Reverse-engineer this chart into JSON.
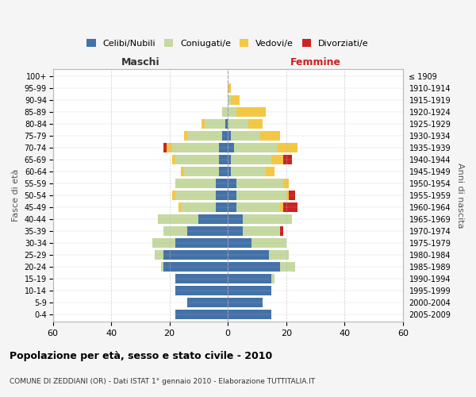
{
  "age_groups_bottom_to_top": [
    "0-4",
    "5-9",
    "10-14",
    "15-19",
    "20-24",
    "25-29",
    "30-34",
    "35-39",
    "40-44",
    "45-49",
    "50-54",
    "55-59",
    "60-64",
    "65-69",
    "70-74",
    "75-79",
    "80-84",
    "85-89",
    "90-94",
    "95-99",
    "100+"
  ],
  "birth_years_bottom_to_top": [
    "2005-2009",
    "2000-2004",
    "1995-1999",
    "1990-1994",
    "1985-1989",
    "1980-1984",
    "1975-1979",
    "1970-1974",
    "1965-1969",
    "1960-1964",
    "1955-1959",
    "1950-1954",
    "1945-1949",
    "1940-1944",
    "1935-1939",
    "1930-1934",
    "1925-1929",
    "1920-1924",
    "1915-1919",
    "1910-1914",
    "≤ 1909"
  ],
  "male": {
    "celibi": [
      18,
      14,
      18,
      18,
      22,
      22,
      18,
      14,
      10,
      4,
      4,
      4,
      3,
      3,
      3,
      2,
      1,
      0,
      0,
      0,
      0
    ],
    "coniugati": [
      0,
      0,
      0,
      0,
      1,
      3,
      8,
      8,
      14,
      12,
      14,
      14,
      12,
      15,
      16,
      12,
      7,
      2,
      0,
      0,
      0
    ],
    "vedovi": [
      0,
      0,
      0,
      0,
      0,
      0,
      0,
      0,
      0,
      1,
      1,
      0,
      1,
      1,
      2,
      1,
      1,
      0,
      0,
      0,
      0
    ],
    "divorziati": [
      0,
      0,
      0,
      0,
      0,
      0,
      0,
      0,
      0,
      0,
      0,
      0,
      0,
      0,
      1,
      0,
      0,
      0,
      0,
      0,
      0
    ]
  },
  "female": {
    "nubili": [
      15,
      12,
      15,
      15,
      18,
      14,
      8,
      5,
      5,
      3,
      3,
      3,
      1,
      1,
      2,
      1,
      0,
      0,
      0,
      0,
      0
    ],
    "coniugate": [
      0,
      0,
      0,
      1,
      5,
      7,
      12,
      13,
      17,
      15,
      17,
      16,
      12,
      14,
      15,
      10,
      7,
      3,
      1,
      0,
      0
    ],
    "vedove": [
      0,
      0,
      0,
      0,
      0,
      0,
      0,
      0,
      0,
      1,
      1,
      2,
      3,
      4,
      7,
      7,
      5,
      10,
      3,
      1,
      0
    ],
    "divorziate": [
      0,
      0,
      0,
      0,
      0,
      0,
      0,
      1,
      0,
      5,
      2,
      0,
      0,
      3,
      0,
      0,
      0,
      0,
      0,
      0,
      0
    ]
  },
  "color_celibi": "#4472a8",
  "color_coniugati": "#c5d9a0",
  "color_vedovi": "#f5c842",
  "color_divorziati": "#cc2222",
  "title": "Popolazione per età, sesso e stato civile - 2010",
  "subtitle": "COMUNE DI ZEDDIANI (OR) - Dati ISTAT 1° gennaio 2010 - Elaborazione TUTTITALIA.IT",
  "xlabel_left": "Maschi",
  "xlabel_right": "Femmine",
  "xlim": 60,
  "legend_labels": [
    "Celibi/Nubili",
    "Coniugati/e",
    "Vedovi/e",
    "Divorziati/e"
  ],
  "ylabel_left": "Fasce di età",
  "ylabel_right": "Anni di nascita",
  "bg_color": "#f5f5f5",
  "plot_bg_color": "#ffffff",
  "grid_color": "#bbbbbb"
}
